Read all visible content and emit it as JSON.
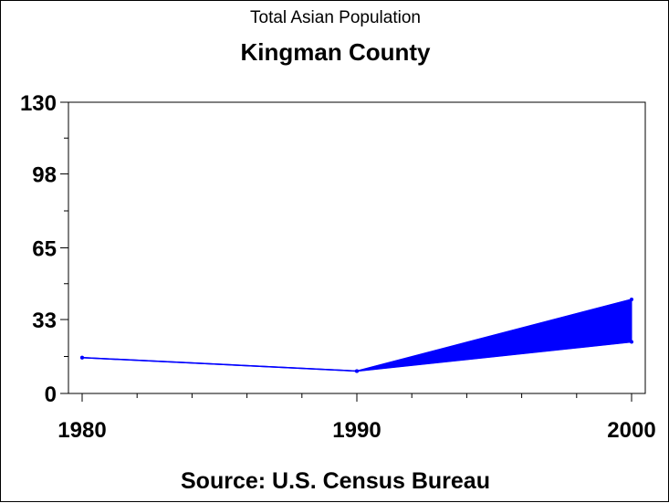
{
  "chart_data": {
    "type": "line",
    "title": "Kingman County",
    "subtitle": "Total Asian Population",
    "footnote": "Source: U.S. Census Bureau",
    "x": [
      1980,
      1990,
      2000
    ],
    "y_ticks": [
      0,
      33,
      65,
      98,
      130
    ],
    "ylim": [
      0,
      130
    ],
    "xlim": [
      1980,
      2000
    ],
    "series": [
      {
        "values": [
          16,
          10,
          42
        ]
      },
      {
        "values": [
          16,
          10,
          23
        ]
      }
    ],
    "band": {
      "x_from": 1990,
      "x_to": 2000,
      "fill": "#0000ff"
    },
    "line_color": "#0000ff",
    "grid": false
  }
}
